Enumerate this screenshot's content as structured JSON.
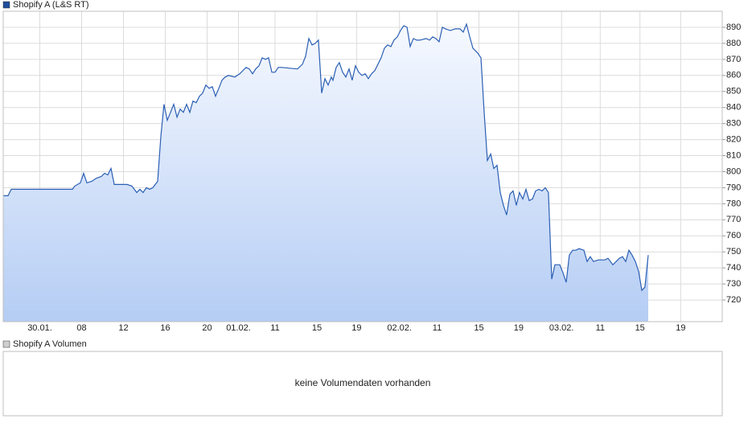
{
  "chart_data": {
    "type": "line",
    "series": [
      {
        "name": "Shopify A (L&S RT)",
        "color": "#2b5fb4",
        "x": [
          0,
          0.46,
          0.77,
          6.62,
          6.85,
          7.38,
          7.69,
          8,
          8.46,
          8.92,
          9.38,
          9.69,
          10,
          10.31,
          10.62,
          11.23,
          11.85,
          12.31,
          12.77,
          13.08,
          13.38,
          13.69,
          14,
          14.31,
          14.77,
          15.08,
          15.38,
          15.69,
          16,
          16.31,
          16.62,
          16.92,
          17.23,
          17.54,
          17.85,
          18.15,
          18.46,
          18.77,
          19.08,
          19.38,
          19.69,
          20,
          20.31,
          20.62,
          20.92,
          21.23,
          21.54,
          22.15,
          22.62,
          22.92,
          23.23,
          23.54,
          23.85,
          24.15,
          24.46,
          24.77,
          25.08,
          25.38,
          25.69,
          26,
          26.31,
          26.62,
          28.15,
          28.62,
          28.92,
          29.23,
          29.54,
          29.85,
          30.15,
          30.46,
          30.77,
          31.08,
          31.38,
          31.54,
          31.85,
          32.15,
          32.46,
          32.77,
          33.08,
          33.38,
          33.69,
          34,
          34.31,
          34.62,
          34.92,
          35.23,
          35.54,
          35.85,
          36.15,
          36.46,
          36.77,
          37.08,
          37.38,
          37.69,
          38,
          38.31,
          38.62,
          38.92,
          39.23,
          39.54,
          39.85,
          40.46,
          40.77,
          41.08,
          41.38,
          41.69,
          42,
          42.31,
          42.77,
          43.23,
          43.69,
          44,
          44.31,
          44.62,
          44.92,
          45.38,
          45.69,
          46,
          46.31,
          46.62,
          46.92,
          47.23,
          47.54,
          47.85,
          48.15,
          48.46,
          48.77,
          49.08,
          49.38,
          49.69,
          50,
          50.31,
          50.62,
          50.92,
          51.23,
          51.54,
          51.85,
          52.15,
          52.46,
          52.77,
          53.23,
          53.54,
          53.85,
          54.15,
          54.46,
          54.77,
          55.08,
          55.54,
          55.85,
          56.15,
          56.46,
          56.92,
          57.54,
          57.85,
          58.31,
          58.62,
          58.92,
          59.23,
          59.54,
          59.85,
          60.15,
          60.46,
          60.77,
          61.08,
          61.38,
          61.69
        ],
        "values": [
          785,
          785,
          789,
          789,
          791,
          793,
          799,
          793,
          794,
          796,
          797,
          799,
          798,
          802,
          792,
          792,
          792,
          791,
          787,
          789,
          787,
          790,
          789,
          790,
          794,
          822,
          842,
          832,
          837,
          842,
          834,
          839,
          837,
          842,
          837,
          844,
          843,
          847,
          849,
          854,
          852,
          853,
          847,
          852,
          857,
          859,
          860,
          859,
          861,
          863,
          865,
          864,
          861,
          864,
          866,
          871,
          870,
          871,
          862,
          862,
          865,
          865,
          864,
          867,
          872,
          883,
          879,
          880,
          882,
          849,
          858,
          854,
          859,
          857,
          865,
          868,
          862,
          859,
          864,
          857,
          866,
          862,
          860,
          861,
          858,
          861,
          863,
          867,
          871,
          877,
          879,
          878,
          882,
          884,
          888,
          891,
          890,
          878,
          883,
          882,
          882,
          883,
          882,
          884,
          883,
          881,
          890,
          889,
          888,
          889,
          889,
          887,
          892,
          884,
          877,
          874,
          871,
          837,
          807,
          811,
          802,
          804,
          787,
          779,
          773,
          786,
          788,
          779,
          787,
          783,
          789,
          782,
          783,
          788,
          789,
          788,
          790,
          787,
          733,
          742,
          742,
          737,
          731,
          748,
          751,
          751,
          752,
          751,
          744,
          747,
          744,
          745,
          745,
          746,
          742,
          744,
          746,
          747,
          744,
          751,
          748,
          744,
          738,
          726,
          728,
          748
        ]
      }
    ],
    "xlim": [
      0,
      68.77
    ],
    "ylim": [
      706.5,
      900
    ],
    "xticks": [
      {
        "value": 3.5,
        "label": "30.01."
      },
      {
        "value": 7.5,
        "label": "08"
      },
      {
        "value": 11.5,
        "label": "12"
      },
      {
        "value": 15.5,
        "label": "16"
      },
      {
        "value": 19.5,
        "label": "20"
      },
      {
        "value": 22.5,
        "label": "01.02."
      },
      {
        "value": 26,
        "label": "11"
      },
      {
        "value": 30,
        "label": "15"
      },
      {
        "value": 33.8,
        "label": "19"
      },
      {
        "value": 37.9,
        "label": "02.02."
      },
      {
        "value": 41.5,
        "label": "11"
      },
      {
        "value": 45.5,
        "label": "15"
      },
      {
        "value": 49.3,
        "label": "19"
      },
      {
        "value": 53.4,
        "label": "03.02."
      },
      {
        "value": 57.1,
        "label": "11"
      },
      {
        "value": 60.9,
        "label": "15"
      },
      {
        "value": 64.8,
        "label": "19"
      }
    ],
    "yticks": [
      720,
      730,
      740,
      750,
      760,
      770,
      780,
      790,
      800,
      810,
      820,
      830,
      840,
      850,
      860,
      870,
      880,
      890
    ],
    "grid": true
  },
  "volume_panel": {
    "title": "Shopify A Volumen",
    "message": "keine Volumendaten vorhanden"
  }
}
